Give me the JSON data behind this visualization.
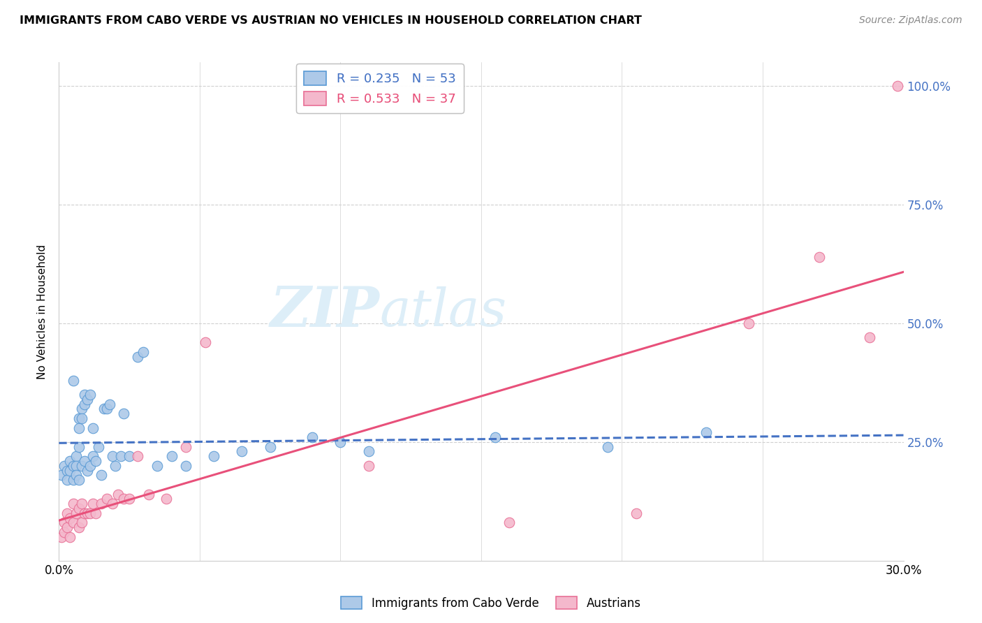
{
  "title_full": "IMMIGRANTS FROM CABO VERDE VS AUSTRIAN NO VEHICLES IN HOUSEHOLD CORRELATION CHART",
  "source": "Source: ZipAtlas.com",
  "ylabel": "No Vehicles in Household",
  "xlim": [
    0.0,
    0.3
  ],
  "ylim": [
    0.0,
    1.05
  ],
  "blue_R": 0.235,
  "blue_N": 53,
  "pink_R": 0.533,
  "pink_N": 37,
  "blue_color": "#adc9e8",
  "blue_edge_color": "#5b9bd5",
  "blue_line_color": "#4472c4",
  "pink_color": "#f4b8cc",
  "pink_edge_color": "#e87096",
  "pink_line_color": "#e8507a",
  "watermark_zip": "ZIP",
  "watermark_atlas": "atlas",
  "watermark_color": "#ddeef8",
  "blue_x": [
    0.001,
    0.002,
    0.003,
    0.003,
    0.004,
    0.004,
    0.005,
    0.005,
    0.005,
    0.006,
    0.006,
    0.006,
    0.007,
    0.007,
    0.007,
    0.007,
    0.008,
    0.008,
    0.008,
    0.009,
    0.009,
    0.009,
    0.01,
    0.01,
    0.011,
    0.011,
    0.012,
    0.012,
    0.013,
    0.014,
    0.015,
    0.016,
    0.017,
    0.018,
    0.019,
    0.02,
    0.022,
    0.023,
    0.025,
    0.028,
    0.03,
    0.035,
    0.04,
    0.045,
    0.055,
    0.065,
    0.075,
    0.09,
    0.1,
    0.11,
    0.155,
    0.195,
    0.23
  ],
  "blue_y": [
    0.18,
    0.2,
    0.19,
    0.17,
    0.21,
    0.19,
    0.38,
    0.2,
    0.17,
    0.22,
    0.2,
    0.18,
    0.3,
    0.28,
    0.24,
    0.17,
    0.32,
    0.3,
    0.2,
    0.35,
    0.33,
    0.21,
    0.34,
    0.19,
    0.35,
    0.2,
    0.28,
    0.22,
    0.21,
    0.24,
    0.18,
    0.32,
    0.32,
    0.33,
    0.22,
    0.2,
    0.22,
    0.31,
    0.22,
    0.43,
    0.44,
    0.2,
    0.22,
    0.2,
    0.22,
    0.23,
    0.24,
    0.26,
    0.25,
    0.23,
    0.26,
    0.24,
    0.27
  ],
  "pink_x": [
    0.001,
    0.002,
    0.002,
    0.003,
    0.003,
    0.004,
    0.004,
    0.005,
    0.005,
    0.006,
    0.007,
    0.007,
    0.008,
    0.008,
    0.009,
    0.01,
    0.011,
    0.012,
    0.013,
    0.015,
    0.017,
    0.019,
    0.021,
    0.023,
    0.025,
    0.028,
    0.032,
    0.038,
    0.045,
    0.052,
    0.11,
    0.16,
    0.205,
    0.245,
    0.27,
    0.288,
    0.298
  ],
  "pink_y": [
    0.05,
    0.08,
    0.06,
    0.1,
    0.07,
    0.09,
    0.05,
    0.12,
    0.08,
    0.1,
    0.11,
    0.07,
    0.12,
    0.08,
    0.1,
    0.1,
    0.1,
    0.12,
    0.1,
    0.12,
    0.13,
    0.12,
    0.14,
    0.13,
    0.13,
    0.22,
    0.14,
    0.13,
    0.24,
    0.46,
    0.2,
    0.08,
    0.1,
    0.5,
    0.64,
    0.47,
    1.0
  ]
}
